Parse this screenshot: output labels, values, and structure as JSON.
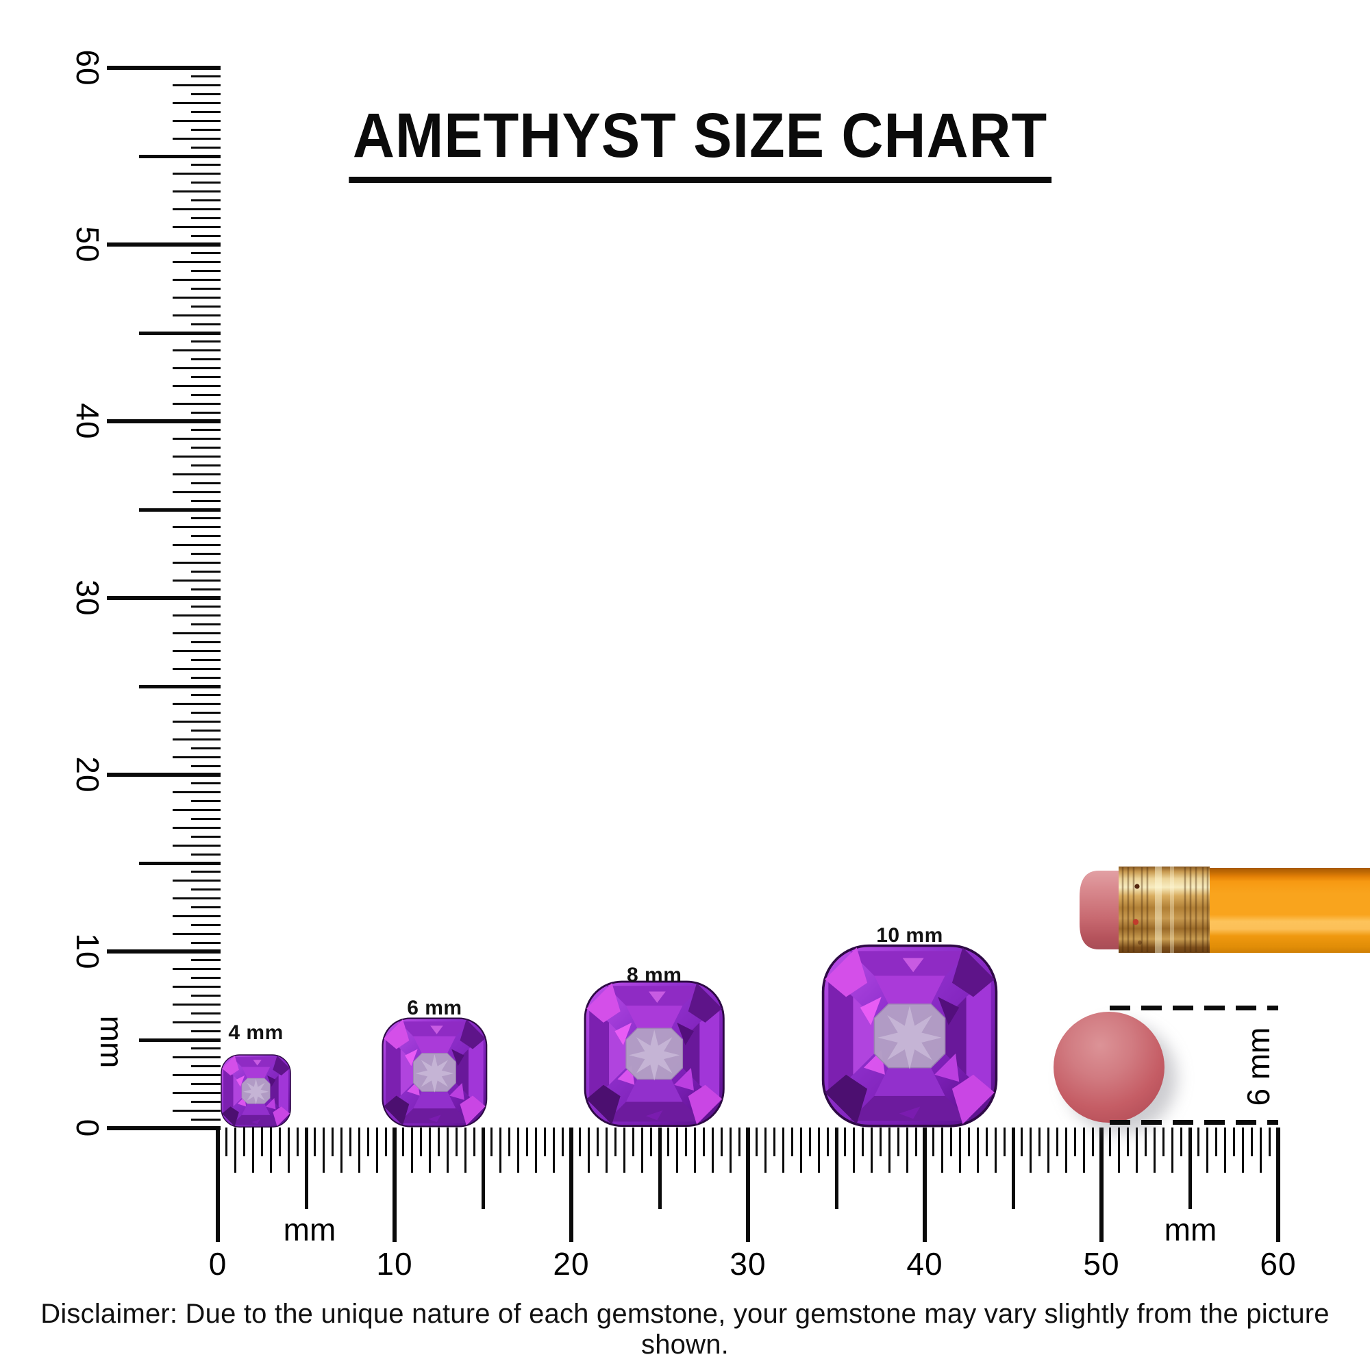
{
  "title": {
    "text": "AMETHYST SIZE CHART"
  },
  "rulers": {
    "vertical": {
      "major_labels": [
        "0",
        "10",
        "20",
        "30",
        "40",
        "50",
        "60"
      ],
      "unit_label": "mm"
    },
    "horizontal": {
      "major_labels": [
        "0",
        "10",
        "20",
        "30",
        "40",
        "50",
        "60"
      ],
      "unit_label": "mm"
    }
  },
  "gems": [
    {
      "label": "4 mm",
      "size_mm": 4
    },
    {
      "label": "6 mm",
      "size_mm": 6
    },
    {
      "label": "8 mm",
      "size_mm": 8
    },
    {
      "label": "10 mm",
      "size_mm": 10
    }
  ],
  "eraser_measure": {
    "label": "6 mm"
  },
  "disclaimer": "Disclaimer: Due to the unique nature of each gemstone, your gemstone may vary slightly from the picture shown.",
  "colors": {
    "tick": "#0a0a0a",
    "gem_bright_magenta": "#d44fe9",
    "gem_mid_purple": "#9232cf",
    "gem_dark_purple": "#520e80",
    "gem_table": "#b3a0c5",
    "eraser_disc": "#c55d65",
    "pencil_body": "#f9a41d",
    "pencil_ferrule": "#c89a50",
    "pencil_eraser": "#d8888d"
  }
}
